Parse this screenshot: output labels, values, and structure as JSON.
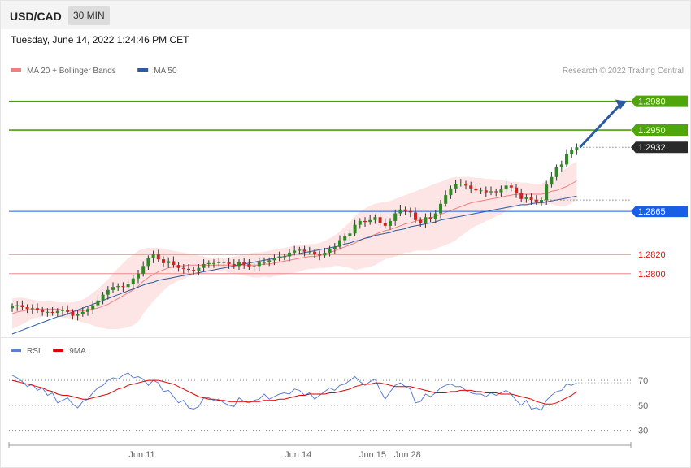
{
  "header": {
    "pair": "USD/CAD",
    "timeframe": "30 MIN"
  },
  "datetime": "Tuesday, June 14, 2022 1:24:46 PM CET",
  "legend": [
    {
      "label": "MA 20 + Bollinger Bands",
      "color": "#f08080"
    },
    {
      "label": "MA 50",
      "color": "#2c5aa0"
    }
  ],
  "credit": "Research © 2022 Trading Central",
  "rsi_legend": [
    {
      "label": "RSI",
      "color": "#5b7fd6"
    },
    {
      "label": "9MA",
      "color": "#e00000"
    }
  ],
  "chart_data": {
    "type": "candlestick",
    "ylim": [
      1.2737,
      1.2995
    ],
    "levels": [
      {
        "value": 1.298,
        "label": "1.2980",
        "kind": "resistance",
        "color": "#4a9e0a"
      },
      {
        "value": 1.295,
        "label": "1.2950",
        "kind": "resistance",
        "color": "#4a9e0a"
      },
      {
        "value": 1.2932,
        "label": "1.2932",
        "kind": "last",
        "color": "#333333"
      },
      {
        "value": 1.2865,
        "label": "1.2865",
        "kind": "pivot",
        "color": "#1a5ee8"
      },
      {
        "value": 1.282,
        "label": "1.2820",
        "kind": "support",
        "color": "#dd1111"
      },
      {
        "value": 1.28,
        "label": "1.2800",
        "kind": "support",
        "color": "#dd1111"
      }
    ],
    "close": [
      1.2766,
      1.2767,
      1.2765,
      1.2763,
      1.2764,
      1.2762,
      1.276,
      1.276,
      1.2759,
      1.2761,
      1.2762,
      1.276,
      1.2756,
      1.2758,
      1.276,
      1.2763,
      1.2767,
      1.2772,
      1.2778,
      1.2783,
      1.2786,
      1.2787,
      1.2786,
      1.2789,
      1.2795,
      1.28,
      1.2808,
      1.2816,
      1.282,
      1.2815,
      1.2811,
      1.2813,
      1.2809,
      1.2806,
      1.2805,
      1.2804,
      1.2803,
      1.2806,
      1.281,
      1.2811,
      1.2811,
      1.2812,
      1.2812,
      1.281,
      1.2808,
      1.2812,
      1.281,
      1.2807,
      1.2808,
      1.2812,
      1.2812,
      1.2814,
      1.2816,
      1.2818,
      1.2818,
      1.2822,
      1.2824,
      1.2825,
      1.2823,
      1.2823,
      1.282,
      1.2819,
      1.2822,
      1.2826,
      1.2828,
      1.2835,
      1.2839,
      1.2842,
      1.2851,
      1.2855,
      1.2854,
      1.2856,
      1.2859,
      1.2853,
      1.285,
      1.2855,
      1.2863,
      1.2867,
      1.2865,
      1.2864,
      1.2856,
      1.2853,
      1.2859,
      1.2857,
      1.2863,
      1.2873,
      1.2882,
      1.2889,
      1.2894,
      1.2894,
      1.2892,
      1.2889,
      1.2887,
      1.2887,
      1.2885,
      1.2886,
      1.2885,
      1.2888,
      1.2892,
      1.289,
      1.2884,
      1.2878,
      1.288,
      1.2877,
      1.2875,
      1.2877,
      1.2893,
      1.2901,
      1.2911,
      1.2914,
      1.2925,
      1.2929,
      1.2932
    ],
    "ma20": [
      1.2758,
      1.276,
      1.2761,
      1.2762,
      1.2763,
      1.2763,
      1.2763,
      1.2763,
      1.2763,
      1.2763,
      1.2762,
      1.2762,
      1.2761,
      1.2761,
      1.2761,
      1.2762,
      1.2763,
      1.2764,
      1.2766,
      1.2768,
      1.2771,
      1.2774,
      1.2777,
      1.278,
      1.2783,
      1.2787,
      1.2792,
      1.2796,
      1.2799,
      1.2802,
      1.2804,
      1.2806,
      1.2807,
      1.2808,
      1.2808,
      1.2809,
      1.2809,
      1.2809,
      1.2809,
      1.2809,
      1.2809,
      1.2809,
      1.2809,
      1.2809,
      1.2809,
      1.2809,
      1.2809,
      1.2809,
      1.2809,
      1.2809,
      1.281,
      1.281,
      1.2811,
      1.2812,
      1.2813,
      1.2814,
      1.2815,
      1.2816,
      1.2817,
      1.2818,
      1.2818,
      1.2819,
      1.282,
      1.2822,
      1.2824,
      1.2826,
      1.2828,
      1.283,
      1.2832,
      1.2835,
      1.2837,
      1.2839,
      1.2841,
      1.2843,
      1.2845,
      1.2846,
      1.2848,
      1.285,
      1.2852,
      1.2853,
      1.2855,
      1.2856,
      1.2857,
      1.2858,
      1.286,
      1.2862,
      1.2864,
      1.2866,
      1.2868,
      1.287,
      1.2872,
      1.2874,
      1.2875,
      1.2876,
      1.2877,
      1.2878,
      1.2879,
      1.288,
      1.2881,
      1.2882,
      1.2883,
      1.2883,
      1.2883,
      1.2883,
      1.2883,
      1.2883,
      1.2884,
      1.2886,
      1.2887,
      1.2889,
      1.2891,
      1.2894,
      1.2897
    ],
    "ma50": [
      1.2737,
      1.2739,
      1.2741,
      1.2743,
      1.2745,
      1.2747,
      1.2749,
      1.2751,
      1.2753,
      1.2755,
      1.2756,
      1.2758,
      1.276,
      1.2762,
      1.2764,
      1.2766,
      1.2768,
      1.277,
      1.2772,
      1.2774,
      1.2776,
      1.2778,
      1.278,
      1.2782,
      1.2784,
      1.2786,
      1.2788,
      1.279,
      1.2791,
      1.2793,
      1.2794,
      1.2795,
      1.2796,
      1.2797,
      1.2798,
      1.2799,
      1.28,
      1.2801,
      1.2802,
      1.2803,
      1.2804,
      1.2805,
      1.2806,
      1.2807,
      1.2808,
      1.2809,
      1.281,
      1.2811,
      1.2812,
      1.2813,
      1.2814,
      1.2815,
      1.2816,
      1.2817,
      1.2818,
      1.2819,
      1.282,
      1.2821,
      1.2822,
      1.2823,
      1.2824,
      1.2825,
      1.2826,
      1.2827,
      1.2828,
      1.2829,
      1.2831,
      1.2832,
      1.2834,
      1.2835,
      1.2837,
      1.2838,
      1.284,
      1.2841,
      1.2842,
      1.2843,
      1.2845,
      1.2846,
      1.2847,
      1.2849,
      1.285,
      1.2851,
      1.2852,
      1.2853,
      1.2854,
      1.2856,
      1.2857,
      1.2858,
      1.2859,
      1.286,
      1.2861,
      1.2862,
      1.2863,
      1.2864,
      1.2865,
      1.2866,
      1.2867,
      1.2868,
      1.2869,
      1.287,
      1.2871,
      1.2872,
      1.2872,
      1.2873,
      1.2874,
      1.2874,
      1.2875,
      1.2876,
      1.2877,
      1.2878,
      1.2879,
      1.288,
      1.2881
    ],
    "bb_upper": [
      1.2774,
      1.2775,
      1.2775,
      1.2774,
      1.2773,
      1.2772,
      1.2771,
      1.2771,
      1.2771,
      1.277,
      1.277,
      1.277,
      1.277,
      1.2771,
      1.2773,
      1.2776,
      1.278,
      1.2784,
      1.2789,
      1.2794,
      1.28,
      1.2806,
      1.2811,
      1.2816,
      1.282,
      1.2824,
      1.2826,
      1.2827,
      1.2827,
      1.2827,
      1.2826,
      1.2825,
      1.2824,
      1.2823,
      1.2822,
      1.2821,
      1.282,
      1.2819,
      1.2818,
      1.2817,
      1.2816,
      1.2816,
      1.2816,
      1.2817,
      1.2818,
      1.2819,
      1.282,
      1.2821,
      1.2822,
      1.2822,
      1.2823,
      1.2824,
      1.2825,
      1.2826,
      1.2827,
      1.2828,
      1.2829,
      1.283,
      1.283,
      1.2831,
      1.2831,
      1.2832,
      1.2834,
      1.2837,
      1.284,
      1.2844,
      1.2849,
      1.2854,
      1.286,
      1.2865,
      1.2868,
      1.2871,
      1.2873,
      1.2874,
      1.2875,
      1.2876,
      1.2878,
      1.288,
      1.2882,
      1.2884,
      1.2886,
      1.2888,
      1.289,
      1.2892,
      1.2894,
      1.2896,
      1.2898,
      1.29,
      1.2901,
      1.2901,
      1.2901,
      1.2901,
      1.29,
      1.29,
      1.2899,
      1.2899,
      1.2898,
      1.2898,
      1.2897,
      1.2896,
      1.2896,
      1.2895,
      1.2895,
      1.2894,
      1.2894,
      1.2894,
      1.2896,
      1.2899,
      1.2903,
      1.2907,
      1.2911,
      1.2914,
      1.2917
    ],
    "bb_lower": [
      1.2742,
      1.2745,
      1.2747,
      1.275,
      1.2753,
      1.2754,
      1.2755,
      1.2755,
      1.2755,
      1.2756,
      1.2754,
      1.2754,
      1.2752,
      1.2751,
      1.2749,
      1.2748,
      1.2746,
      1.2744,
      1.2743,
      1.2742,
      1.2742,
      1.2742,
      1.2743,
      1.2744,
      1.2746,
      1.275,
      1.2758,
      1.2765,
      1.2771,
      1.2777,
      1.2782,
      1.2787,
      1.279,
      1.2793,
      1.2794,
      1.2797,
      1.2798,
      1.2799,
      1.28,
      1.2801,
      1.2802,
      1.2802,
      1.2802,
      1.2801,
      1.28,
      1.2799,
      1.2798,
      1.2797,
      1.2796,
      1.2796,
      1.2797,
      1.2796,
      1.2797,
      1.2798,
      1.2799,
      1.28,
      1.2801,
      1.2802,
      1.2804,
      1.2805,
      1.2805,
      1.2806,
      1.2806,
      1.2807,
      1.2808,
      1.2808,
      1.2807,
      1.2806,
      1.2804,
      1.2805,
      1.2806,
      1.2807,
      1.2809,
      1.2812,
      1.2815,
      1.2816,
      1.2818,
      1.282,
      1.2822,
      1.2822,
      1.2824,
      1.2824,
      1.2824,
      1.2824,
      1.2826,
      1.2828,
      1.283,
      1.2832,
      1.2835,
      1.2839,
      1.2843,
      1.2847,
      1.285,
      1.2852,
      1.2855,
      1.2857,
      1.286,
      1.2862,
      1.2865,
      1.2868,
      1.287,
      1.2871,
      1.2871,
      1.2872,
      1.2872,
      1.2872,
      1.2872,
      1.2873,
      1.2871,
      1.2871,
      1.2871,
      1.2874,
      1.2877
    ],
    "rsi": {
      "levels": [
        70,
        50,
        30
      ],
      "ylim": [
        20,
        85
      ],
      "rsi": [
        74,
        72,
        69,
        65,
        67,
        62,
        64,
        58,
        60,
        52,
        54,
        56,
        51,
        48,
        53,
        55,
        60,
        64,
        66,
        70,
        72,
        71,
        74,
        76,
        72,
        73,
        71,
        66,
        70,
        68,
        61,
        62,
        57,
        52,
        54,
        48,
        47,
        49,
        56,
        56,
        54,
        55,
        52,
        50,
        49,
        56,
        53,
        52,
        54,
        55,
        59,
        55,
        57,
        59,
        60,
        59,
        63,
        62,
        58,
        60,
        55,
        58,
        61,
        64,
        62,
        66,
        67,
        70,
        73,
        69,
        66,
        69,
        71,
        62,
        55,
        61,
        66,
        68,
        65,
        63,
        52,
        53,
        59,
        57,
        60,
        64,
        66,
        67,
        65,
        65,
        62,
        60,
        59,
        59,
        57,
        60,
        58,
        60,
        62,
        59,
        54,
        50,
        54,
        47,
        48,
        46,
        54,
        58,
        61,
        62,
        67,
        66,
        68
      ],
      "ma9": [
        70,
        69,
        68,
        67,
        66,
        65,
        64,
        62,
        61,
        59,
        58,
        58,
        57,
        56,
        55,
        55,
        56,
        57,
        58,
        59,
        61,
        63,
        64,
        66,
        67,
        68,
        69,
        70,
        70,
        70,
        69,
        68,
        67,
        65,
        63,
        61,
        59,
        57,
        56,
        55,
        55,
        54,
        54,
        53,
        53,
        53,
        53,
        53,
        53,
        53,
        54,
        54,
        54,
        55,
        55,
        56,
        57,
        58,
        58,
        59,
        59,
        59,
        59,
        60,
        60,
        61,
        62,
        63,
        65,
        66,
        67,
        67,
        68,
        68,
        67,
        66,
        65,
        65,
        65,
        65,
        64,
        63,
        62,
        61,
        60,
        60,
        60,
        61,
        61,
        62,
        62,
        62,
        61,
        61,
        60,
        60,
        60,
        59,
        59,
        59,
        58,
        57,
        56,
        55,
        53,
        52,
        51,
        51,
        52,
        54,
        56,
        58,
        61
      ]
    },
    "x_ticks": [
      {
        "label": "Jun 11",
        "index": 22.5
      },
      {
        "label": "Jun 14",
        "index": 53.5
      },
      {
        "label": "Jun 15",
        "index": 68.3
      },
      {
        "label": "Jun 28",
        "index": 75.2
      }
    ]
  }
}
